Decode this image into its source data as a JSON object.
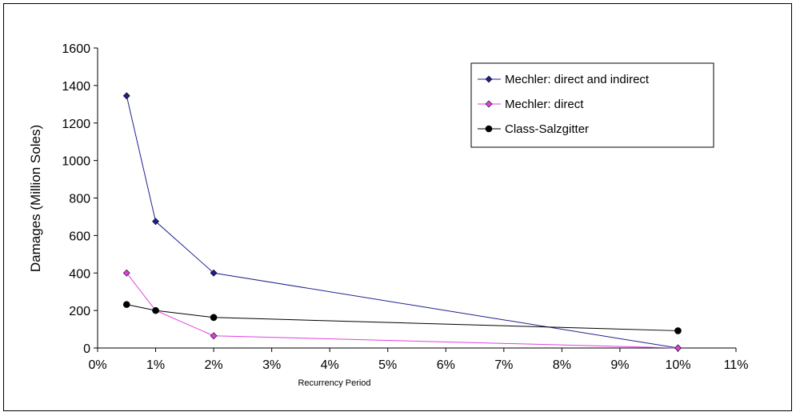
{
  "chart_data": {
    "type": "line",
    "xlabel": "Recurrency Period",
    "ylabel": "Damages (Million Soles)",
    "xlim": [
      0,
      11
    ],
    "ylim": [
      0,
      1600
    ],
    "x_ticks": [
      "0%",
      "1%",
      "2%",
      "3%",
      "4%",
      "5%",
      "6%",
      "7%",
      "8%",
      "9%",
      "10%",
      "11%"
    ],
    "y_ticks": [
      "0",
      "200",
      "400",
      "600",
      "800",
      "1000",
      "1200",
      "1400",
      "1600"
    ],
    "grid": false,
    "legend_position": "top-right",
    "series": [
      {
        "name": "Mechler: direct and indirect",
        "color": "#1f1f8f",
        "marker": "diamond",
        "x": [
          0.5,
          1,
          2,
          10
        ],
        "values": [
          1345,
          675,
          400,
          0
        ]
      },
      {
        "name": "Mechler: direct",
        "color": "#e040e0",
        "marker": "diamond",
        "x": [
          0.5,
          1,
          2,
          10
        ],
        "values": [
          400,
          200,
          65,
          0
        ]
      },
      {
        "name": "Class-Salzgitter",
        "color": "#000000",
        "marker": "circle",
        "x": [
          0.5,
          1,
          2,
          10
        ],
        "values": [
          232,
          200,
          163,
          92
        ]
      }
    ]
  }
}
